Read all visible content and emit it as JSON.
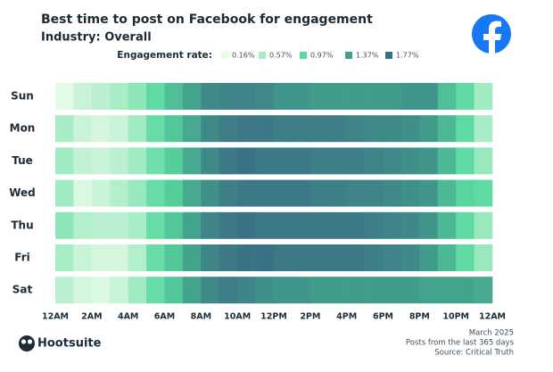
{
  "chart_data": {
    "type": "heatmap",
    "title": "Best time to post on Facebook for engagement",
    "subtitle": "Industry: Overall",
    "legend": {
      "title": "Engagement rate:",
      "items": [
        {
          "value": 0.16,
          "label": "0.16%",
          "color": "#eafbe8"
        },
        {
          "value": 0.57,
          "label": "0.57%",
          "color": "#a6ecc4"
        },
        {
          "value": 0.97,
          "label": "0.97%",
          "color": "#5ad9a0"
        },
        {
          "value": 1.37,
          "label": "1.37%",
          "color": "#43a08c"
        },
        {
          "value": 1.77,
          "label": "1.77%",
          "color": "#3a7085"
        }
      ]
    },
    "xlim": [
      0,
      24
    ],
    "xticks": [
      {
        "value": 0,
        "label": "12AM"
      },
      {
        "value": 2,
        "label": "2AM"
      },
      {
        "value": 4,
        "label": "4AM"
      },
      {
        "value": 6,
        "label": "6AM"
      },
      {
        "value": 8,
        "label": "8AM"
      },
      {
        "value": 10,
        "label": "10AM"
      },
      {
        "value": 12,
        "label": "12PM"
      },
      {
        "value": 14,
        "label": "2PM"
      },
      {
        "value": 16,
        "label": "4PM"
      },
      {
        "value": 18,
        "label": "6PM"
      },
      {
        "value": 20,
        "label": "8PM"
      },
      {
        "value": 22,
        "label": "10PM"
      },
      {
        "value": 24,
        "label": "12AM"
      }
    ],
    "series": [
      {
        "name": "Sun",
        "values": [
          0.2,
          0.35,
          0.45,
          0.55,
          0.7,
          0.95,
          1.15,
          1.35,
          1.55,
          1.6,
          1.6,
          1.55,
          1.45,
          1.45,
          1.4,
          1.4,
          1.4,
          1.4,
          1.4,
          1.45,
          1.45,
          1.15,
          0.95,
          0.6
        ]
      },
      {
        "name": "Mon",
        "values": [
          0.55,
          0.35,
          0.3,
          0.35,
          0.6,
          0.9,
          1.1,
          1.3,
          1.55,
          1.65,
          1.7,
          1.7,
          1.65,
          1.65,
          1.65,
          1.65,
          1.6,
          1.55,
          1.55,
          1.5,
          1.4,
          1.2,
          0.95,
          0.55
        ]
      },
      {
        "name": "Tue",
        "values": [
          0.6,
          0.4,
          0.35,
          0.45,
          0.6,
          0.85,
          1.05,
          1.3,
          1.55,
          1.7,
          1.75,
          1.7,
          1.7,
          1.7,
          1.65,
          1.65,
          1.65,
          1.6,
          1.55,
          1.5,
          1.45,
          1.2,
          0.95,
          0.65
        ]
      },
      {
        "name": "Wed",
        "values": [
          0.6,
          0.25,
          0.35,
          0.5,
          0.65,
          0.9,
          1.05,
          1.3,
          1.5,
          1.65,
          1.7,
          1.7,
          1.7,
          1.7,
          1.65,
          1.65,
          1.6,
          1.6,
          1.55,
          1.5,
          1.45,
          1.2,
          1.0,
          0.95
        ]
      },
      {
        "name": "Thu",
        "values": [
          0.7,
          0.5,
          0.45,
          0.45,
          0.55,
          0.9,
          1.1,
          1.35,
          1.6,
          1.7,
          1.75,
          1.7,
          1.7,
          1.7,
          1.7,
          1.7,
          1.7,
          1.65,
          1.6,
          1.55,
          1.45,
          1.2,
          0.95,
          0.65
        ]
      },
      {
        "name": "Fri",
        "values": [
          0.55,
          0.35,
          0.3,
          0.3,
          0.5,
          0.9,
          1.1,
          1.35,
          1.6,
          1.7,
          1.75,
          1.75,
          1.7,
          1.7,
          1.7,
          1.7,
          1.7,
          1.65,
          1.6,
          1.55,
          1.4,
          1.2,
          0.95,
          0.65
        ]
      },
      {
        "name": "Sat",
        "values": [
          0.45,
          0.3,
          0.25,
          0.35,
          0.6,
          0.9,
          1.1,
          1.35,
          1.55,
          1.65,
          1.6,
          1.5,
          1.45,
          1.45,
          1.4,
          1.4,
          1.4,
          1.4,
          1.4,
          1.4,
          1.35,
          1.35,
          1.35,
          1.3
        ]
      }
    ]
  },
  "footer": {
    "brand": "Hootsuite",
    "date": "March 2025",
    "note": "Posts from the last 365 days",
    "source": "Source: Critical Truth"
  }
}
